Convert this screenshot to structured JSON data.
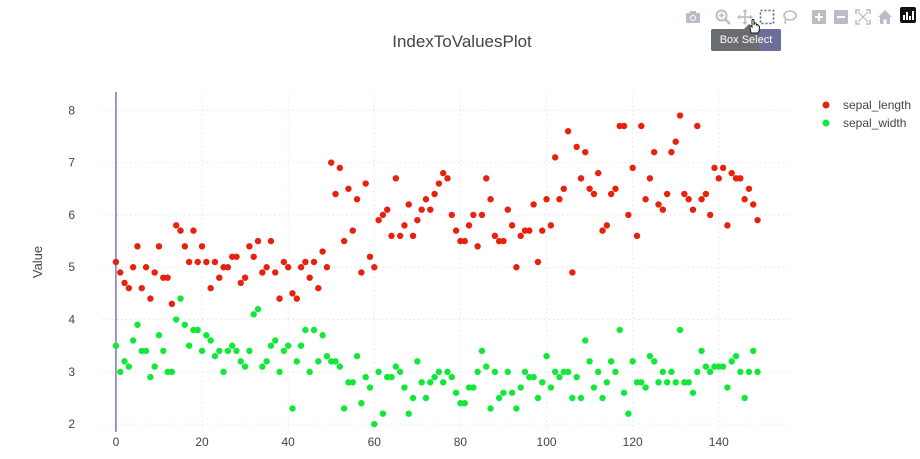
{
  "chart_data": {
    "type": "scatter",
    "title": "IndexToValuesPlot",
    "xlabel": "",
    "ylabel": "Value",
    "xlim": [
      -3,
      157
    ],
    "ylim": [
      1.85,
      8.35
    ],
    "x_ticks": [
      0,
      20,
      40,
      60,
      80,
      100,
      120,
      140
    ],
    "y_ticks": [
      2,
      3,
      4,
      5,
      6,
      7,
      8
    ],
    "legend_position": "top-right",
    "grid": true,
    "series": [
      {
        "name": "sepal_length",
        "color": "#e8210c",
        "x": [
          0,
          1,
          2,
          3,
          4,
          5,
          6,
          7,
          8,
          9,
          10,
          11,
          12,
          13,
          14,
          15,
          16,
          17,
          18,
          19,
          20,
          21,
          22,
          23,
          24,
          25,
          26,
          27,
          28,
          29,
          30,
          31,
          32,
          33,
          34,
          35,
          36,
          37,
          38,
          39,
          40,
          41,
          42,
          43,
          44,
          45,
          46,
          47,
          48,
          49,
          50,
          51,
          52,
          53,
          54,
          55,
          56,
          57,
          58,
          59,
          60,
          61,
          62,
          63,
          64,
          65,
          66,
          67,
          68,
          69,
          70,
          71,
          72,
          73,
          74,
          75,
          76,
          77,
          78,
          79,
          80,
          81,
          82,
          83,
          84,
          85,
          86,
          87,
          88,
          89,
          90,
          91,
          92,
          93,
          94,
          95,
          96,
          97,
          98,
          99,
          100,
          101,
          102,
          103,
          104,
          105,
          106,
          107,
          108,
          109,
          110,
          111,
          112,
          113,
          114,
          115,
          116,
          117,
          118,
          119,
          120,
          121,
          122,
          123,
          124,
          125,
          126,
          127,
          128,
          129,
          130,
          131,
          132,
          133,
          134,
          135,
          136,
          137,
          138,
          139,
          140,
          141,
          142,
          143,
          144,
          145,
          146,
          147,
          148,
          149
        ],
        "values": [
          5.1,
          4.9,
          4.7,
          4.6,
          5.0,
          5.4,
          4.6,
          5.0,
          4.4,
          4.9,
          5.4,
          4.8,
          4.8,
          4.3,
          5.8,
          5.7,
          5.4,
          5.1,
          5.7,
          5.1,
          5.4,
          5.1,
          4.6,
          5.1,
          4.8,
          5.0,
          5.0,
          5.2,
          5.2,
          4.7,
          4.8,
          5.4,
          5.2,
          5.5,
          4.9,
          5.0,
          5.5,
          4.9,
          4.4,
          5.1,
          5.0,
          4.5,
          4.4,
          5.0,
          5.1,
          4.8,
          5.1,
          4.6,
          5.3,
          5.0,
          7.0,
          6.4,
          6.9,
          5.5,
          6.5,
          5.7,
          6.3,
          4.9,
          6.6,
          5.2,
          5.0,
          5.9,
          6.0,
          6.1,
          5.6,
          6.7,
          5.6,
          5.8,
          6.2,
          5.6,
          5.9,
          6.1,
          6.3,
          6.1,
          6.4,
          6.6,
          6.8,
          6.7,
          6.0,
          5.7,
          5.5,
          5.5,
          5.8,
          6.0,
          5.4,
          6.0,
          6.7,
          6.3,
          5.6,
          5.5,
          5.5,
          6.1,
          5.8,
          5.0,
          5.6,
          5.7,
          5.7,
          6.2,
          5.1,
          5.7,
          6.3,
          5.8,
          7.1,
          6.3,
          6.5,
          7.6,
          4.9,
          7.3,
          6.7,
          7.2,
          6.5,
          6.4,
          6.8,
          5.7,
          5.8,
          6.4,
          6.5,
          7.7,
          7.7,
          6.0,
          6.9,
          5.6,
          7.7,
          6.3,
          6.7,
          7.2,
          6.2,
          6.1,
          6.4,
          7.2,
          7.4,
          7.9,
          6.4,
          6.3,
          6.1,
          7.7,
          6.3,
          6.4,
          6.0,
          6.9,
          6.7,
          6.9,
          5.8,
          6.8,
          6.7,
          6.7,
          6.3,
          6.5,
          6.2,
          5.9
        ]
      },
      {
        "name": "sepal_width",
        "color": "#12e83a",
        "x": [
          0,
          1,
          2,
          3,
          4,
          5,
          6,
          7,
          8,
          9,
          10,
          11,
          12,
          13,
          14,
          15,
          16,
          17,
          18,
          19,
          20,
          21,
          22,
          23,
          24,
          25,
          26,
          27,
          28,
          29,
          30,
          31,
          32,
          33,
          34,
          35,
          36,
          37,
          38,
          39,
          40,
          41,
          42,
          43,
          44,
          45,
          46,
          47,
          48,
          49,
          50,
          51,
          52,
          53,
          54,
          55,
          56,
          57,
          58,
          59,
          60,
          61,
          62,
          63,
          64,
          65,
          66,
          67,
          68,
          69,
          70,
          71,
          72,
          73,
          74,
          75,
          76,
          77,
          78,
          79,
          80,
          81,
          82,
          83,
          84,
          85,
          86,
          87,
          88,
          89,
          90,
          91,
          92,
          93,
          94,
          95,
          96,
          97,
          98,
          99,
          100,
          101,
          102,
          103,
          104,
          105,
          106,
          107,
          108,
          109,
          110,
          111,
          112,
          113,
          114,
          115,
          116,
          117,
          118,
          119,
          120,
          121,
          122,
          123,
          124,
          125,
          126,
          127,
          128,
          129,
          130,
          131,
          132,
          133,
          134,
          135,
          136,
          137,
          138,
          139,
          140,
          141,
          142,
          143,
          144,
          145,
          146,
          147,
          148,
          149
        ],
        "values": [
          3.5,
          3.0,
          3.2,
          3.1,
          3.6,
          3.9,
          3.4,
          3.4,
          2.9,
          3.1,
          3.7,
          3.4,
          3.0,
          3.0,
          4.0,
          4.4,
          3.9,
          3.5,
          3.8,
          3.8,
          3.4,
          3.7,
          3.6,
          3.3,
          3.4,
          3.0,
          3.4,
          3.5,
          3.4,
          3.2,
          3.1,
          3.4,
          4.1,
          4.2,
          3.1,
          3.2,
          3.5,
          3.6,
          3.0,
          3.4,
          3.5,
          2.3,
          3.2,
          3.5,
          3.8,
          3.0,
          3.8,
          3.2,
          3.7,
          3.3,
          3.2,
          3.2,
          3.1,
          2.3,
          2.8,
          2.8,
          3.3,
          2.4,
          2.9,
          2.7,
          2.0,
          3.0,
          2.2,
          2.9,
          2.9,
          3.1,
          3.0,
          2.7,
          2.2,
          2.5,
          3.2,
          2.8,
          2.5,
          2.8,
          2.9,
          3.0,
          2.8,
          3.0,
          2.9,
          2.6,
          2.4,
          2.4,
          2.7,
          2.7,
          3.0,
          3.4,
          3.1,
          2.3,
          3.0,
          2.5,
          2.6,
          3.0,
          2.6,
          2.3,
          2.7,
          3.0,
          2.9,
          2.9,
          2.5,
          2.8,
          3.3,
          2.7,
          3.0,
          2.9,
          3.0,
          3.0,
          2.5,
          2.9,
          2.5,
          3.6,
          3.2,
          2.7,
          3.0,
          2.5,
          2.8,
          3.2,
          3.0,
          3.8,
          2.6,
          2.2,
          3.2,
          2.8,
          2.8,
          2.7,
          3.3,
          3.2,
          2.8,
          3.0,
          2.8,
          3.0,
          2.8,
          3.8,
          2.8,
          2.8,
          2.6,
          3.0,
          3.4,
          3.1,
          3.0,
          3.1,
          3.1,
          3.1,
          2.7,
          3.2,
          3.3,
          3.0,
          2.5,
          3.0,
          3.4,
          3.0
        ]
      }
    ]
  },
  "modebar": {
    "tooltip": "Box Select",
    "buttons": [
      "camera-icon",
      "zoom-icon",
      "pan-icon",
      "box-select-icon",
      "lasso-icon",
      "zoom-in-icon",
      "zoom-out-icon",
      "autoscale-icon",
      "home-icon"
    ]
  }
}
